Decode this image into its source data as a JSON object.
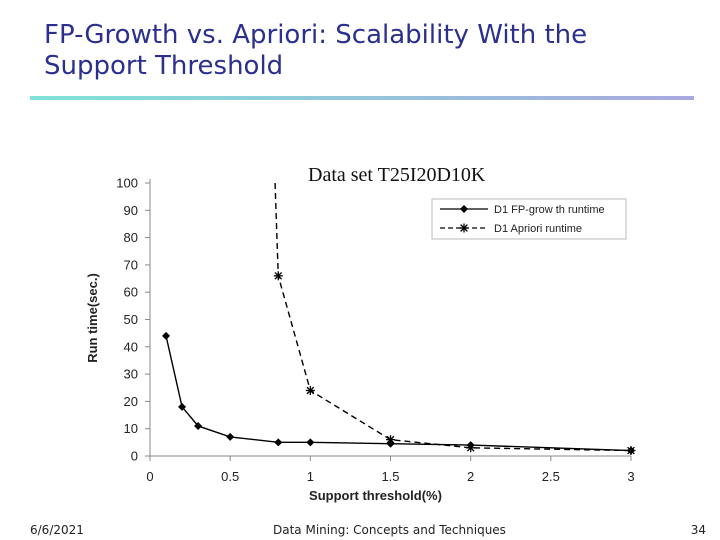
{
  "slide": {
    "title": "FP-Growth vs. Apriori: Scalability With the Support Threshold",
    "date": "6/6/2021",
    "footer": "Data Mining: Concepts and Techniques",
    "page": "34",
    "colors": {
      "title": "#2b2f8f",
      "rule_start": "#7fe3d6",
      "rule_end": "#a9a8e0"
    }
  },
  "chart_data": {
    "type": "line",
    "title": "Data set T25I20D10K",
    "xlabel": "Support threshold(%)",
    "ylabel": "Run time(sec.)",
    "xlim": [
      0,
      3
    ],
    "ylim": [
      0,
      100
    ],
    "xticks": [
      "0",
      "0.5",
      "1",
      "1.5",
      "2",
      "2.5",
      "3"
    ],
    "yticks": [
      "0",
      "10",
      "20",
      "30",
      "40",
      "50",
      "60",
      "70",
      "80",
      "90",
      "100"
    ],
    "legend_position": "top-right",
    "grid": false,
    "series": [
      {
        "name": "D1 FP-grow th runtime",
        "style": "solid",
        "marker": "diamond",
        "points": [
          [
            0.1,
            44
          ],
          [
            0.2,
            18
          ],
          [
            0.3,
            11
          ],
          [
            0.5,
            7
          ],
          [
            0.8,
            5
          ],
          [
            1,
            5
          ],
          [
            1.5,
            4.5
          ],
          [
            2,
            4
          ],
          [
            3,
            2
          ]
        ]
      },
      {
        "name": "D1 Apriori runtime",
        "style": "dashed",
        "marker": "star",
        "points": [
          [
            0.78,
            100
          ],
          [
            0.8,
            66
          ],
          [
            1,
            24
          ],
          [
            1.5,
            6
          ],
          [
            2,
            3
          ],
          [
            3,
            2
          ]
        ],
        "unmarked_points": [
          [
            0.78,
            100
          ]
        ]
      }
    ]
  }
}
